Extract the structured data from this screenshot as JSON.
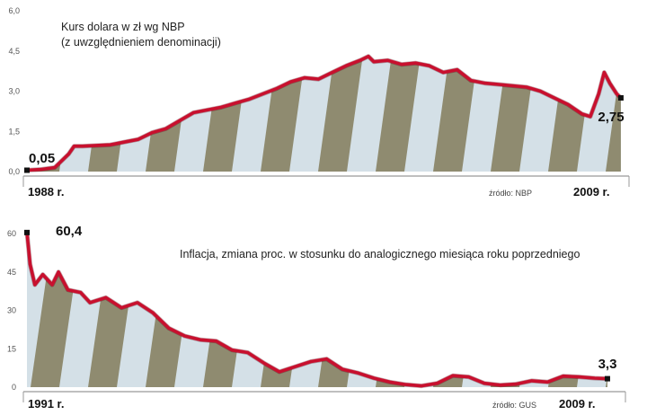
{
  "colors": {
    "line": "#c8102e",
    "stripe_dark": "#8f8b70",
    "stripe_light": "#d4e0e7",
    "axis": "#999999",
    "marker": "#111111"
  },
  "chart_data": [
    {
      "type": "area",
      "title": "Kurs dolara w zł wg NBP",
      "subtitle": "(z uwzględnieniem denominacji)",
      "source": "źródło: NBP",
      "x_start_label": "1988 r.",
      "x_end_label": "2009 r.",
      "first_value_label": "0,05",
      "last_value_label": "2,75",
      "yticks": [
        "0,0",
        "1,5",
        "3,0",
        "4,5",
        "6,0"
      ],
      "ylim": [
        0,
        6
      ],
      "xlim": [
        1988,
        2009.5
      ],
      "x": [
        1988.0,
        1988.5,
        1989.0,
        1989.5,
        1989.7,
        1990.0,
        1991.0,
        1991.5,
        1992.0,
        1992.5,
        1993.0,
        1993.5,
        1994.0,
        1994.5,
        1995.0,
        1995.5,
        1996.0,
        1996.5,
        1997.0,
        1997.5,
        1998.0,
        1998.5,
        1999.0,
        1999.5,
        2000.0,
        2000.3,
        2000.5,
        2001.0,
        2001.5,
        2002.0,
        2002.5,
        2003.0,
        2003.5,
        2004.0,
        2004.5,
        2005.0,
        2005.5,
        2006.0,
        2006.5,
        2007.0,
        2007.5,
        2008.0,
        2008.3,
        2008.6,
        2008.8,
        2009.0,
        2009.25,
        2009.4
      ],
      "values": [
        0.05,
        0.08,
        0.15,
        0.65,
        0.95,
        0.95,
        1.0,
        1.1,
        1.2,
        1.45,
        1.6,
        1.9,
        2.2,
        2.3,
        2.4,
        2.55,
        2.7,
        2.9,
        3.1,
        3.35,
        3.5,
        3.45,
        3.7,
        3.95,
        4.15,
        4.3,
        4.1,
        4.15,
        4.0,
        4.05,
        3.95,
        3.7,
        3.8,
        3.4,
        3.3,
        3.25,
        3.2,
        3.15,
        3.0,
        2.75,
        2.5,
        2.15,
        2.05,
        2.9,
        3.7,
        3.3,
        2.9,
        2.75
      ]
    },
    {
      "type": "area",
      "title": "Inflacja, zmiana proc. w stosunku do analogicznego miesiąca roku poprzedniego",
      "source": "źródło: GUS",
      "x_start_label": "1991 r.",
      "x_end_label": "2009 r.",
      "max_value_label": "60,4",
      "last_value_label": "3,3",
      "yticks": [
        "0",
        "15",
        "30",
        "45",
        "60"
      ],
      "ylim": [
        0,
        60
      ],
      "xlim": [
        1991,
        2009.8
      ],
      "x": [
        1991.0,
        1991.1,
        1991.25,
        1991.5,
        1991.8,
        1992.0,
        1992.3,
        1992.7,
        1993.0,
        1993.5,
        1994.0,
        1994.5,
        1995.0,
        1995.5,
        1996.0,
        1996.5,
        1997.0,
        1997.5,
        1998.0,
        1998.5,
        1999.0,
        1999.5,
        2000.0,
        2000.5,
        2001.0,
        2001.5,
        2002.0,
        2002.5,
        2003.0,
        2003.5,
        2004.0,
        2004.5,
        2005.0,
        2005.5,
        2006.0,
        2006.5,
        2007.0,
        2007.5,
        2008.0,
        2008.5,
        2009.0,
        2009.4
      ],
      "values": [
        60.4,
        48.0,
        40.0,
        44.0,
        40.0,
        45.0,
        38.0,
        37.0,
        33.0,
        35.0,
        31.0,
        33.0,
        29.0,
        23.0,
        20.0,
        18.5,
        18.0,
        14.5,
        13.5,
        9.5,
        6.0,
        8.0,
        10.0,
        11.0,
        7.0,
        5.5,
        3.5,
        2.0,
        1.0,
        0.5,
        1.5,
        4.5,
        4.0,
        1.5,
        0.8,
        1.2,
        2.5,
        2.0,
        4.3,
        4.0,
        3.5,
        3.3
      ]
    }
  ]
}
